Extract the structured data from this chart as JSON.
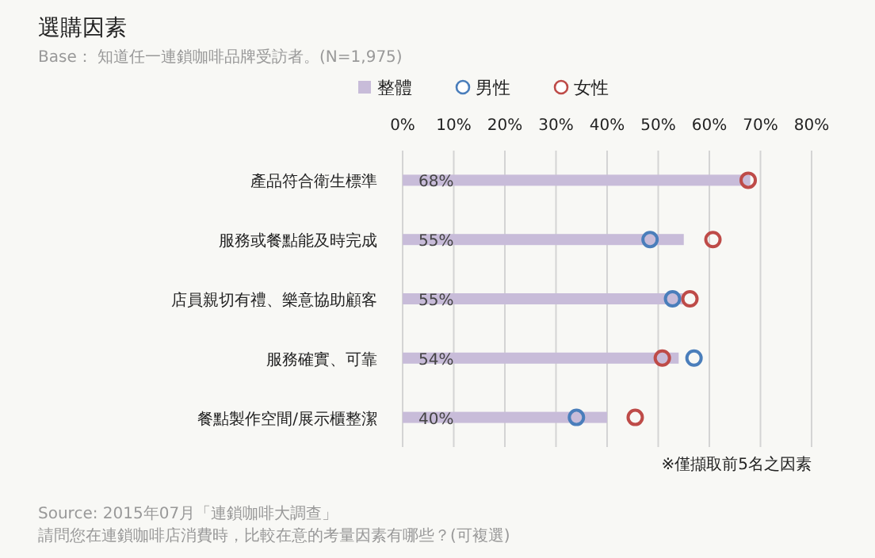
{
  "chart_data": {
    "type": "bar",
    "orientation": "horizontal",
    "title": "選購因素",
    "subtitle": "Base： 知道任一連鎖咖啡品牌受訪者。(N=1,975)",
    "categories": [
      "產品符合衛生標準",
      "服務或餐點能及時完成",
      "店員親切有禮、樂意協助顧客",
      "服務確實、可靠",
      "餐點製作空間/展示櫃整潔"
    ],
    "series": [
      {
        "name": "整體",
        "type": "bar",
        "color": "#c8bcd9",
        "values": [
          68,
          55,
          55,
          54,
          40
        ],
        "value_labels": [
          "68%",
          "55%",
          "55%",
          "54%",
          "40%"
        ]
      },
      {
        "name": "男性",
        "type": "scatter",
        "color": "#4a7ebb",
        "values": [
          null,
          48.4,
          52.8,
          57.0,
          34.0
        ]
      },
      {
        "name": "女性",
        "type": "scatter",
        "color": "#be4b48",
        "values": [
          67.6,
          60.7,
          56.2,
          50.8,
          45.5
        ]
      }
    ],
    "xlim": [
      0,
      80
    ],
    "xticks": [
      {
        "value": 0,
        "label": "0%"
      },
      {
        "value": 10,
        "label": "10%"
      },
      {
        "value": 20,
        "label": "20%"
      },
      {
        "value": 30,
        "label": "30%"
      },
      {
        "value": 40,
        "label": "40%"
      },
      {
        "value": 50,
        "label": "50%"
      },
      {
        "value": 60,
        "label": "60%"
      },
      {
        "value": 70,
        "label": "70%"
      },
      {
        "value": 80,
        "label": "80%"
      }
    ],
    "grid": "x",
    "legend": "top",
    "marker": "circle",
    "annotations": [
      "※僅擷取前5名之因素",
      "Source: 2015年07月「連鎖咖啡大調查」",
      "請問您在連鎖咖啡店消費時，比較在意的考量因素有哪些？(可複選)"
    ]
  }
}
